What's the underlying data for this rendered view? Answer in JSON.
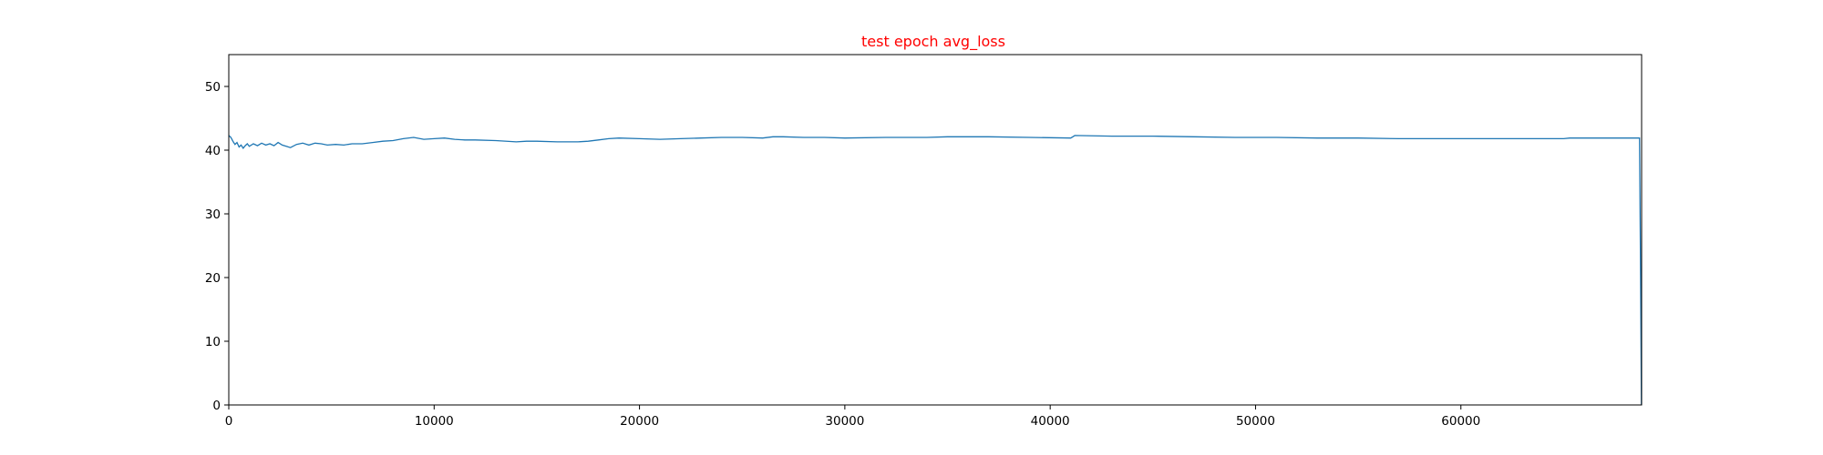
{
  "chart_data": {
    "type": "line",
    "title": "test epoch avg_loss",
    "title_color": "#ff0000",
    "xlabel": "",
    "ylabel": "",
    "xlim": [
      0,
      68800
    ],
    "ylim": [
      0,
      55
    ],
    "x_ticks": [
      0,
      10000,
      20000,
      30000,
      40000,
      50000,
      60000
    ],
    "y_ticks": [
      0,
      10,
      20,
      30,
      40,
      50
    ],
    "grid": false,
    "line_color": "#1f77b4",
    "series": [
      {
        "x": [
          0,
          100,
          200,
          300,
          400,
          500,
          600,
          700,
          800,
          900,
          1000,
          1200,
          1400,
          1600,
          1800,
          2000,
          2200,
          2400,
          2600,
          2800,
          3000,
          3300,
          3600,
          3900,
          4200,
          4500,
          4800,
          5200,
          5600,
          6000,
          6500,
          7000,
          7500,
          8000,
          8500,
          9000,
          9500,
          10000,
          10500,
          11000,
          11500,
          12000,
          13000,
          14000,
          14500,
          15000,
          16000,
          17000,
          17500,
          18000,
          18500,
          19000,
          20000,
          21000,
          22000,
          23000,
          24000,
          25000,
          26000,
          26500,
          27000,
          28000,
          29000,
          30000,
          32000,
          34000,
          35000,
          37000,
          39000,
          41000,
          41200,
          43000,
          45000,
          47000,
          49000,
          51000,
          53000,
          55000,
          57000,
          59000,
          61000,
          63000,
          65000,
          65300,
          67000,
          68700,
          68750,
          68790
        ],
        "y": [
          42.3,
          42.0,
          41.4,
          40.9,
          41.2,
          40.5,
          40.8,
          40.3,
          40.7,
          41.0,
          40.6,
          41.0,
          40.7,
          41.1,
          40.8,
          41.0,
          40.7,
          41.2,
          40.8,
          40.6,
          40.4,
          40.9,
          41.1,
          40.8,
          41.1,
          41.0,
          40.8,
          40.9,
          40.8,
          41.0,
          41.0,
          41.2,
          41.4,
          41.5,
          41.8,
          42.0,
          41.7,
          41.8,
          41.9,
          41.7,
          41.6,
          41.6,
          41.5,
          41.3,
          41.4,
          41.4,
          41.3,
          41.3,
          41.4,
          41.6,
          41.8,
          41.9,
          41.8,
          41.7,
          41.8,
          41.9,
          42.0,
          42.0,
          41.9,
          42.1,
          42.1,
          42.0,
          42.0,
          41.9,
          42.0,
          42.0,
          42.1,
          42.1,
          42.0,
          41.9,
          42.3,
          42.2,
          42.2,
          42.1,
          42.0,
          42.0,
          41.9,
          41.9,
          41.8,
          41.8,
          41.8,
          41.8,
          41.8,
          41.9,
          41.9,
          41.9,
          20.0,
          0.0
        ]
      }
    ]
  }
}
